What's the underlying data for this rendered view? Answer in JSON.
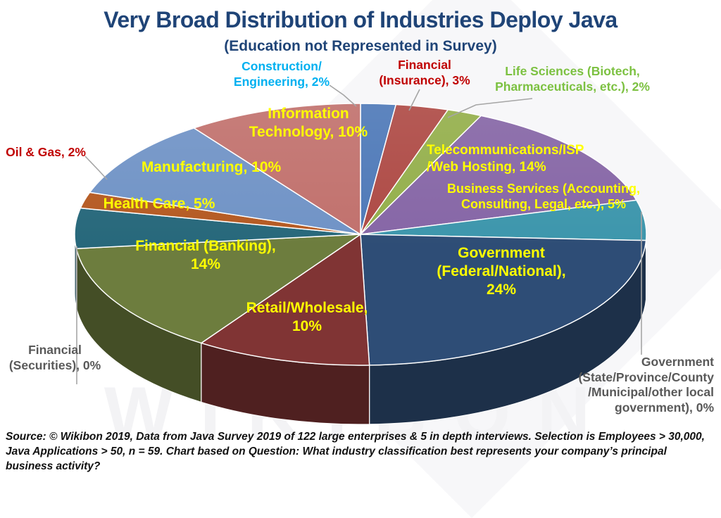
{
  "title": "Very Broad Distribution of Industries Deploy Java",
  "subtitle": "(Education not Represented in Survey)",
  "watermark": "WIKIBON",
  "source": "Source: © Wikibon 2019, Data from Java Survey 2019 of 122 large enterprises & 5 in depth interviews. Selection is Employees > 30,000, Java Applications > 50, n = 59. Chart  based on Question: What industry classification best represents your company’s principal business activity?",
  "colors": {
    "title_text": "#1f4477",
    "inside_label": "#FFFF00",
    "outside_gray_label": "#595959",
    "callout_line": "#a6a6a6",
    "background": "#ffffff"
  },
  "chart_data": {
    "type": "pie",
    "is_3d": true,
    "title": "Very Broad Distribution of Industries Deploy Java",
    "subtitle": "(Education not Represented in Survey)",
    "unit": "%",
    "legend_position": "none",
    "slices": [
      {
        "id": "construction",
        "name": "Construction/Engineering",
        "pct": 2,
        "color": "#4E79B8",
        "label_color": "#00B0F0",
        "placement": "outside",
        "label_lines": [
          "Construction/",
          "Engineering, 2%"
        ]
      },
      {
        "id": "insurance",
        "name": "Financial (Insurance)",
        "pct": 3,
        "color": "#AE4A45",
        "label_color": "#C00000",
        "placement": "outside",
        "label_lines": [
          "Financial",
          "(Insurance), 3%"
        ]
      },
      {
        "id": "life_sciences",
        "name": "Life Sciences (Biotech, Pharmaceuticals, etc.)",
        "pct": 2,
        "color": "#94AF4B",
        "label_color": "#7CC141",
        "placement": "outside",
        "label_lines": [
          "Life Sciences (Biotech,",
          "Pharmaceuticals, etc.), 2%"
        ]
      },
      {
        "id": "telecom",
        "name": "Telecommunications/ISP/Web Hosting",
        "pct": 14,
        "color": "#8666A6",
        "label_color": "#FFFF00",
        "placement": "inside",
        "label_lines": [
          "Telecommunications/ISP",
          "/Web Hosting, 14%"
        ]
      },
      {
        "id": "business_services",
        "name": "Business Services (Accounting, Consulting, Legal, etc.)",
        "pct": 5,
        "color": "#3D96AC",
        "label_color": "#FFFF00",
        "placement": "inside",
        "label_lines": [
          "Business Services (Accounting,",
          "Consulting,  Legal, etc.), 5%"
        ]
      },
      {
        "id": "gov_state",
        "name": "Government (State/Province/County/Municipal/other local government)",
        "pct": 0,
        "color": "#2E4D76",
        "label_color": "#595959",
        "placement": "outside",
        "label_lines": [
          "Government",
          "(State/Province/County",
          "/Municipal/other local",
          "government), 0%"
        ]
      },
      {
        "id": "gov_federal",
        "name": "Government (Federal/National)",
        "pct": 24,
        "color": "#2E4D76",
        "label_color": "#FFFF00",
        "placement": "inside",
        "label_lines": [
          "Government",
          "(Federal/National),",
          "24%"
        ]
      },
      {
        "id": "retail",
        "name": "Retail/Wholesale",
        "pct": 10,
        "color": "#803434",
        "label_color": "#FFFF00",
        "placement": "inside",
        "label_lines": [
          "Retail/Wholesale,",
          "10%"
        ]
      },
      {
        "id": "banking",
        "name": "Financial (Banking)",
        "pct": 14,
        "color": "#6D7D3E",
        "label_color": "#FFFF00",
        "placement": "inside",
        "label_lines": [
          "Financial (Banking),",
          "14%"
        ]
      },
      {
        "id": "securities",
        "name": "Financial (Securities)",
        "pct": 0,
        "color": "#6D7D3E",
        "label_color": "#595959",
        "placement": "outside",
        "label_lines": [
          "Financial",
          "(Securities), 0%"
        ]
      },
      {
        "id": "health_care",
        "name": "Health Care",
        "pct": 5,
        "color": "#27687B",
        "label_color": "#FFFF00",
        "placement": "inside",
        "label_lines": [
          "Health Care, 5%"
        ]
      },
      {
        "id": "oil_gas",
        "name": "Oil & Gas",
        "pct": 2,
        "color": "#B55A22",
        "label_color": "#C00000",
        "placement": "outside",
        "label_lines": [
          "Oil & Gas, 2%"
        ]
      },
      {
        "id": "manufacturing",
        "name": "Manufacturing",
        "pct": 10,
        "color": "#7093C6",
        "label_color": "#FFFF00",
        "placement": "inside",
        "label_lines": [
          "Manufacturing, 10%"
        ]
      },
      {
        "id": "information_technology",
        "name": "Information Technology",
        "pct": 10,
        "color": "#C1716D",
        "label_color": "#FFFF00",
        "placement": "inside",
        "label_lines": [
          "Information",
          "Technology, 10%"
        ]
      }
    ]
  }
}
